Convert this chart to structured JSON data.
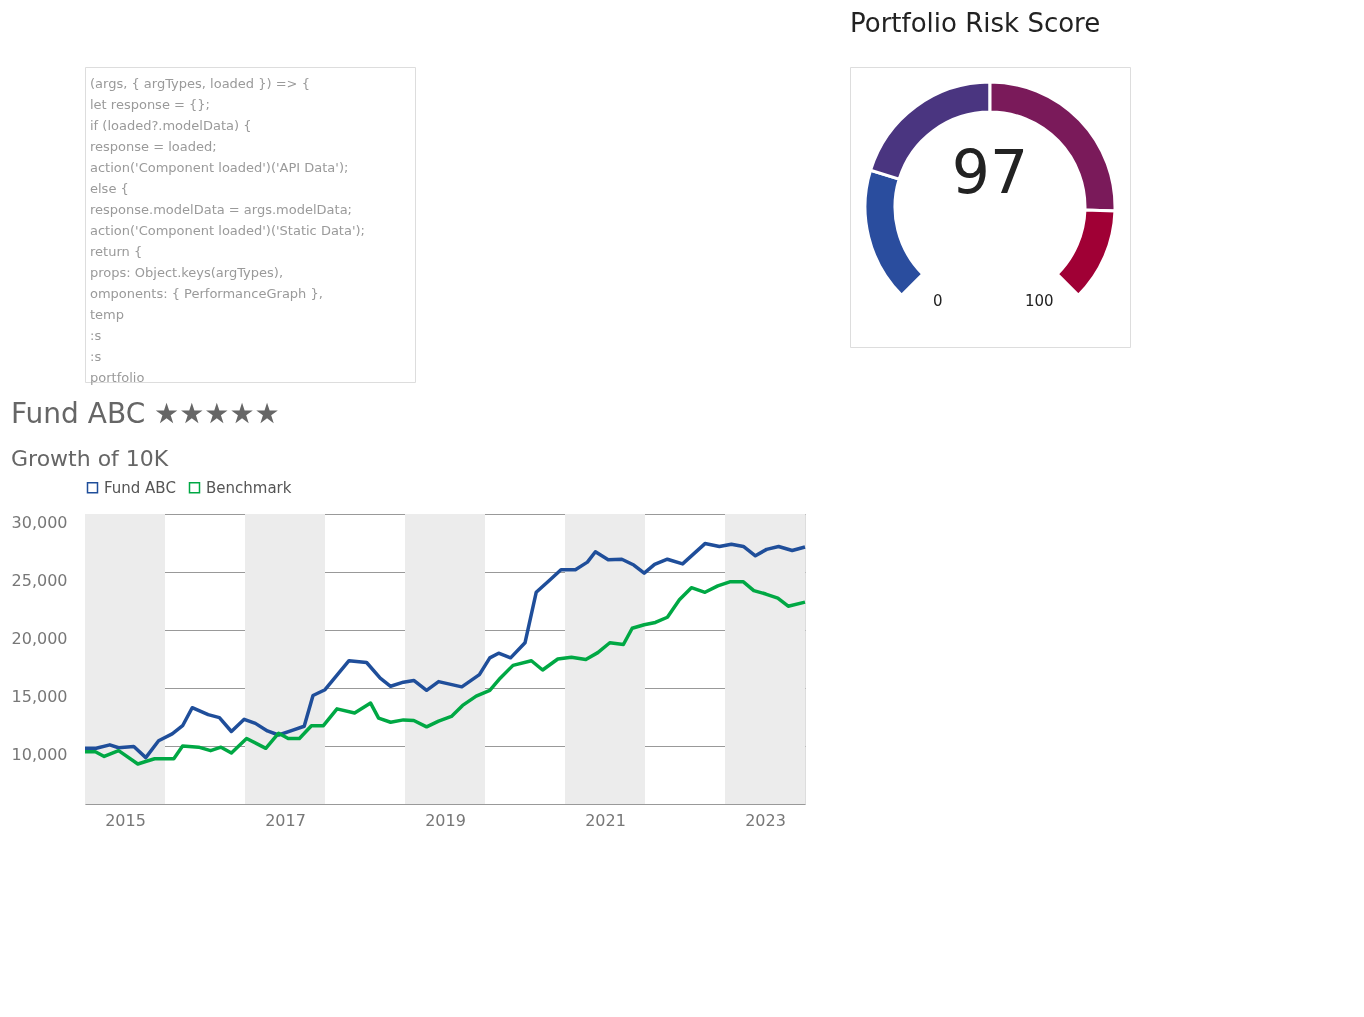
{
  "chart_data": [
    {
      "type": "other",
      "annotations": [
        "(args, { argTypes, loaded }) => {",
        "let response = {};",
        "if (loaded?.modelData) {",
        "response = loaded;",
        "action('Component loaded')('API Data');",
        "else {",
        "response.modelData = args.modelData;",
        "action('Component loaded')('Static Data');",
        "return {",
        "props: Object.keys(argTypes),",
        "omponents: { PerformanceGraph },",
        "temp",
        ":s",
        ":s",
        "portfolio"
      ]
    },
    {
      "type": "line",
      "title": "Fund ABC ★★★★★",
      "subtitle": "Growth of 10K",
      "series": [
        {
          "name": "Fund ABC",
          "color": "#1f4e9a",
          "x": [
            2015.0,
            2015.14,
            2015.31,
            2015.42,
            2015.61,
            2015.76,
            2015.92,
            2016.09,
            2016.22,
            2016.34,
            2016.54,
            2016.68,
            2016.83,
            2016.99,
            2017.13,
            2017.28,
            2017.42,
            2017.59,
            2017.74,
            2017.85,
            2018.0,
            2018.3,
            2018.52,
            2018.69,
            2018.82,
            2018.98,
            2019.11,
            2019.27,
            2019.42,
            2019.71,
            2019.93,
            2020.06,
            2020.17,
            2020.32,
            2020.5,
            2020.64,
            2020.8,
            2020.95,
            2021.13,
            2021.28,
            2021.38,
            2021.54,
            2021.71,
            2021.86,
            2021.99,
            2022.12,
            2022.28,
            2022.47,
            2022.75,
            2022.93,
            2023.08,
            2023.23,
            2023.38,
            2023.52,
            2023.67,
            2023.84,
            2024.0
          ],
          "values": [
            9800,
            9800,
            10100,
            9850,
            9950,
            9000,
            10450,
            11050,
            11750,
            13300,
            12700,
            12450,
            11250,
            12300,
            11950,
            11300,
            10950,
            11350,
            11700,
            14350,
            14850,
            17350,
            17200,
            15850,
            15150,
            15500,
            15650,
            14800,
            15550,
            15100,
            16150,
            17600,
            18000,
            17600,
            18900,
            23250,
            24250,
            25200,
            25200,
            25850,
            26750,
            26050,
            26100,
            25600,
            24900,
            25650,
            26100,
            25700,
            27450,
            27200,
            27400,
            27200,
            26400,
            26950,
            27200,
            26850,
            27150
          ]
        },
        {
          "name": "Benchmark",
          "color": "#00a844",
          "x": [
            2015.0,
            2015.13,
            2015.24,
            2015.42,
            2015.66,
            2015.87,
            2016.11,
            2016.22,
            2016.42,
            2016.57,
            2016.7,
            2016.83,
            2017.02,
            2017.26,
            2017.42,
            2017.54,
            2017.68,
            2017.83,
            2017.98,
            2018.15,
            2018.37,
            2018.57,
            2018.67,
            2018.82,
            2018.98,
            2019.11,
            2019.27,
            2019.42,
            2019.58,
            2019.72,
            2019.89,
            2020.06,
            2020.19,
            2020.35,
            2020.58,
            2020.72,
            2020.91,
            2021.08,
            2021.26,
            2021.41,
            2021.56,
            2021.73,
            2021.84,
            2021.99,
            2022.13,
            2022.28,
            2022.43,
            2022.58,
            2022.75,
            2022.91,
            2023.06,
            2023.23,
            2023.36,
            2023.51,
            2023.66,
            2023.79,
            2024.0
          ],
          "values": [
            9500,
            9500,
            9100,
            9600,
            8450,
            8900,
            8900,
            10000,
            9900,
            9600,
            9900,
            9400,
            10650,
            9800,
            11100,
            10650,
            10650,
            11750,
            11750,
            13200,
            12850,
            13700,
            12400,
            12050,
            12250,
            12200,
            11650,
            12150,
            12550,
            13500,
            14300,
            14800,
            15850,
            16950,
            17350,
            16550,
            17500,
            17650,
            17450,
            18050,
            18900,
            18750,
            20150,
            20450,
            20650,
            21100,
            22600,
            23650,
            23250,
            23800,
            24150,
            24150,
            23400,
            23100,
            22750,
            22050,
            22400
          ]
        }
      ],
      "xlim": [
        2015,
        2024
      ],
      "xticks": [
        {
          "value": 2015.5,
          "label": "2015"
        },
        {
          "value": 2017.5,
          "label": "2017"
        },
        {
          "value": 2019.5,
          "label": "2019"
        },
        {
          "value": 2021.5,
          "label": "2021"
        },
        {
          "value": 2023.5,
          "label": "2023"
        }
      ],
      "ylim": [
        5000,
        30000
      ],
      "yticks": [
        {
          "value": 5000,
          "label": null
        },
        {
          "value": 10000,
          "label": "10,000"
        },
        {
          "value": 15000,
          "label": "15,000"
        },
        {
          "value": 20000,
          "label": "20,000"
        },
        {
          "value": 25000,
          "label": "25,000"
        },
        {
          "value": 30000,
          "label": "30,000"
        }
      ],
      "bands": [
        {
          "axis": "x",
          "from": 2015,
          "to": 2016,
          "color": "#ececec"
        },
        {
          "axis": "x",
          "from": 2017,
          "to": 2018,
          "color": "#ececec"
        },
        {
          "axis": "x",
          "from": 2019,
          "to": 2020,
          "color": "#ececec"
        },
        {
          "axis": "x",
          "from": 2021,
          "to": 2022,
          "color": "#ececec"
        },
        {
          "axis": "x",
          "from": 2023,
          "to": 2024,
          "color": "#ececec"
        }
      ],
      "grid": "y",
      "legend": "top left",
      "marker": "none",
      "line_style": "solid"
    },
    {
      "type": "donut",
      "title": "Portfolio Risk Score",
      "categories": [
        null,
        null,
        null,
        null
      ],
      "values": [
        23,
        27,
        34,
        16
      ],
      "colors": [
        "#2a4d9e",
        "#4a3580",
        "#7a1a5a",
        "#a00035"
      ],
      "annotations": [
        "97",
        "0",
        "100"
      ]
    }
  ]
}
